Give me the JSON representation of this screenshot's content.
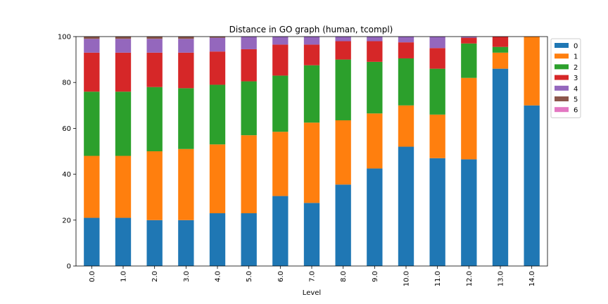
{
  "chart_data": {
    "type": "bar",
    "stacked": true,
    "title": "Distance in GO graph (human, tcompl)",
    "xlabel": "Level",
    "ylabel": "",
    "ylim": [
      0,
      100
    ],
    "yticks": [
      0,
      20,
      40,
      60,
      80,
      100
    ],
    "categories": [
      "0.0",
      "1.0",
      "2.0",
      "3.0",
      "4.0",
      "5.0",
      "6.0",
      "7.0",
      "8.0",
      "9.0",
      "10.0",
      "11.0",
      "12.0",
      "13.0",
      "14.0"
    ],
    "legend_position": "upper-right-outside",
    "series": [
      {
        "name": "0",
        "color": "#1f77b4",
        "values": [
          21,
          21,
          20,
          20,
          23,
          23,
          30.5,
          27.5,
          35.5,
          42.5,
          52,
          47,
          46.5,
          86,
          70
        ]
      },
      {
        "name": "1",
        "color": "#ff7f0e",
        "values": [
          27,
          27,
          30,
          31,
          30,
          34,
          28,
          35,
          28,
          24,
          18,
          19,
          35.5,
          7,
          30
        ]
      },
      {
        "name": "2",
        "color": "#2ca02c",
        "values": [
          28,
          28,
          28,
          26.5,
          26,
          23.5,
          24.5,
          25,
          26.5,
          22.5,
          20.5,
          20,
          15,
          2.5,
          0
        ]
      },
      {
        "name": "3",
        "color": "#d62728",
        "values": [
          17,
          17,
          15,
          15.5,
          14.5,
          14,
          13.5,
          9,
          8,
          9,
          7,
          9,
          2.5,
          4.5,
          0
        ]
      },
      {
        "name": "4",
        "color": "#9467bd",
        "values": [
          6,
          6,
          6,
          6,
          6,
          5.5,
          3.5,
          3.5,
          2,
          2,
          2.5,
          5,
          0.5,
          0,
          0
        ]
      },
      {
        "name": "5",
        "color": "#8c564b",
        "values": [
          1,
          1,
          1,
          1,
          0.5,
          0,
          0,
          0,
          0,
          0,
          0,
          0,
          0,
          0,
          0
        ]
      },
      {
        "name": "6",
        "color": "#e377c2",
        "values": [
          0,
          0,
          0,
          0,
          0,
          0,
          0,
          0,
          0,
          0,
          0,
          0,
          0,
          0,
          0
        ]
      }
    ]
  }
}
